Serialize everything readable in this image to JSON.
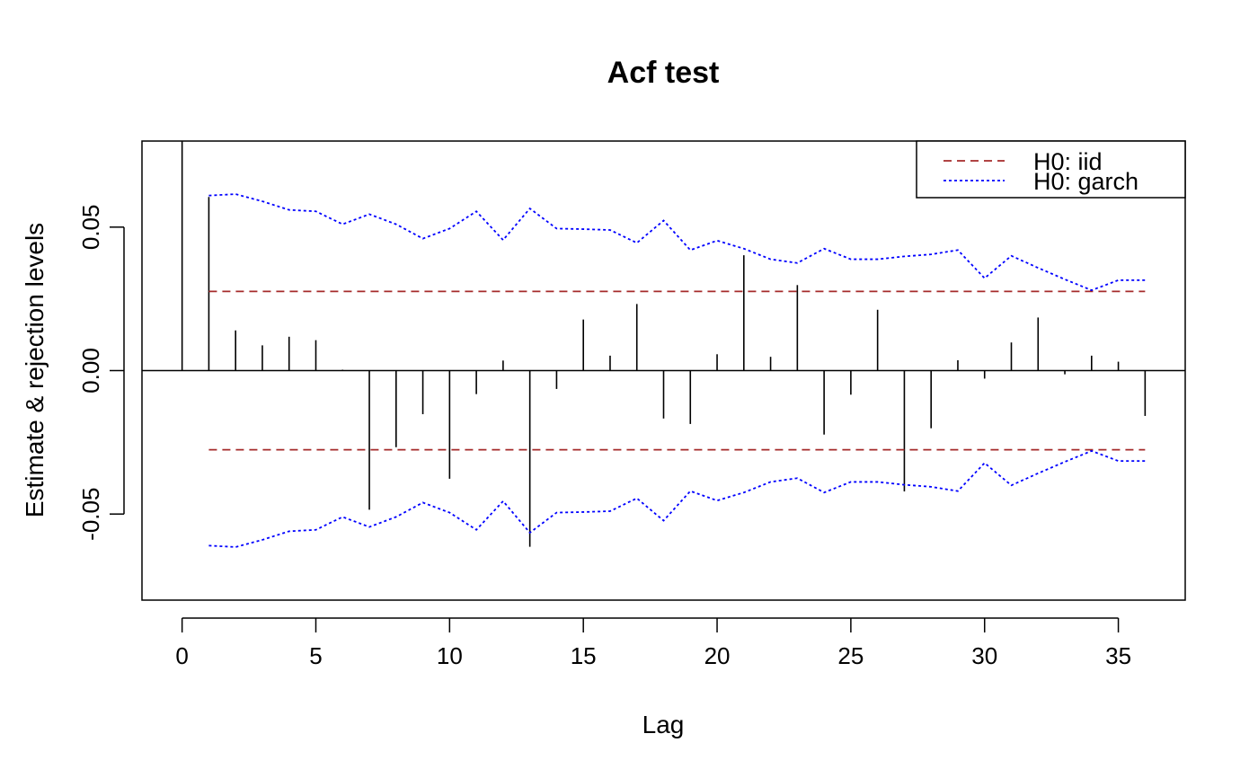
{
  "chart_data": {
    "type": "bar",
    "title": "Acf test",
    "xlabel": "Lag",
    "ylabel": "Estimate & rejection levels",
    "xlim": [
      -1.5,
      37.5
    ],
    "ylim": [
      -0.08,
      0.08
    ],
    "x_ticks": [
      0,
      5,
      10,
      15,
      20,
      25,
      30,
      35
    ],
    "x_tick_labels": [
      "0",
      "5",
      "10",
      "15",
      "20",
      "25",
      "30",
      "35"
    ],
    "y_ticks": [
      -0.05,
      0.0,
      0.05
    ],
    "y_tick_labels": [
      "-0.05",
      "0.00",
      "0.05"
    ],
    "grid": false,
    "legend_position": "top-right",
    "lags": [
      0,
      1,
      2,
      3,
      4,
      5,
      6,
      7,
      8,
      9,
      10,
      11,
      12,
      13,
      14,
      15,
      16,
      17,
      18,
      19,
      20,
      21,
      22,
      23,
      24,
      25,
      26,
      27,
      28,
      29,
      30,
      31,
      32,
      33,
      34,
      35,
      36
    ],
    "acf": [
      1.0,
      0.0605,
      0.014,
      0.0088,
      0.0118,
      0.0106,
      0.0003,
      -0.0485,
      -0.0267,
      -0.0152,
      -0.0377,
      -0.0082,
      0.0035,
      -0.0614,
      -0.0064,
      0.0178,
      0.0052,
      0.0232,
      -0.0167,
      -0.0186,
      0.0057,
      0.0402,
      0.0048,
      0.0298,
      -0.0223,
      -0.0084,
      0.0212,
      -0.0421,
      -0.0201,
      0.0036,
      -0.0028,
      0.0098,
      0.0185,
      -0.0013,
      0.0052,
      0.0031,
      -0.0158
    ],
    "series": [
      {
        "name": "H0: iid",
        "color": "#a52a2a",
        "linestyle": "dashed",
        "x": [
          1,
          36
        ],
        "upper": [
          0.0276,
          0.0276
        ],
        "lower": [
          -0.0276,
          -0.0276
        ]
      },
      {
        "name": "H0: garch",
        "color": "#0000ff",
        "linestyle": "dotted",
        "x": [
          1,
          2,
          3,
          4,
          5,
          6,
          7,
          8,
          9,
          10,
          11,
          12,
          13,
          14,
          15,
          16,
          17,
          18,
          19,
          20,
          21,
          22,
          23,
          24,
          25,
          26,
          27,
          28,
          29,
          30,
          31,
          32,
          33,
          34,
          35,
          36
        ],
        "upper": [
          0.061,
          0.0615,
          0.059,
          0.056,
          0.0555,
          0.051,
          0.0545,
          0.051,
          0.046,
          0.0495,
          0.0555,
          0.0455,
          0.0565,
          0.0495,
          0.0493,
          0.049,
          0.0445,
          0.0523,
          0.042,
          0.0453,
          0.0425,
          0.0388,
          0.0375,
          0.0425,
          0.0388,
          0.0388,
          0.0398,
          0.0405,
          0.042,
          0.0322,
          0.04,
          0.0358,
          0.0318,
          0.028,
          0.0315,
          0.0315
        ],
        "lower": [
          -0.061,
          -0.0615,
          -0.059,
          -0.056,
          -0.0555,
          -0.051,
          -0.0545,
          -0.051,
          -0.046,
          -0.0495,
          -0.0555,
          -0.0455,
          -0.0565,
          -0.0495,
          -0.0493,
          -0.049,
          -0.0445,
          -0.0523,
          -0.042,
          -0.0453,
          -0.0425,
          -0.0388,
          -0.0375,
          -0.0425,
          -0.0388,
          -0.0388,
          -0.0398,
          -0.0405,
          -0.042,
          -0.0322,
          -0.04,
          -0.0358,
          -0.0318,
          -0.028,
          -0.0315,
          -0.0315
        ]
      }
    ]
  }
}
